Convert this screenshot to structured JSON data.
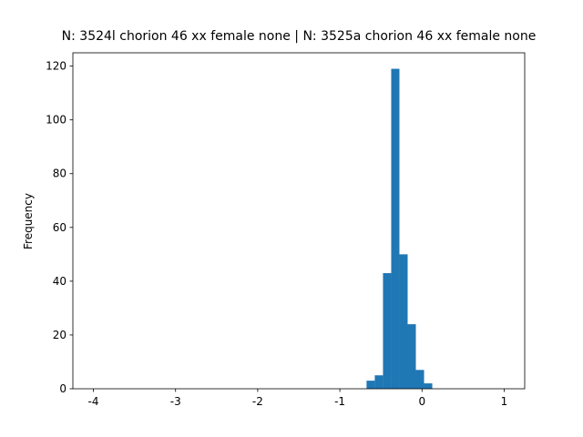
{
  "chart_data": {
    "type": "histogram",
    "title": "N: 3524l chorion 46 xx female none | N: 3525a chorion 46 xx female none",
    "y_label": "Frequency",
    "bins": [
      -0.675,
      -0.575,
      -0.475,
      -0.375,
      -0.275,
      -0.175,
      -0.075,
      0.025,
      0.125
    ],
    "values": [
      3,
      5,
      43,
      119,
      50,
      24,
      7,
      2
    ],
    "color": "#1f77b4",
    "xlim": [
      -4.25,
      1.25
    ],
    "xticks": [
      -4,
      -3,
      -2,
      -1,
      0,
      1
    ],
    "ylim": [
      0,
      124.95
    ],
    "yticks": [
      0,
      20,
      40,
      60,
      80,
      100,
      120
    ],
    "grid": false
  }
}
